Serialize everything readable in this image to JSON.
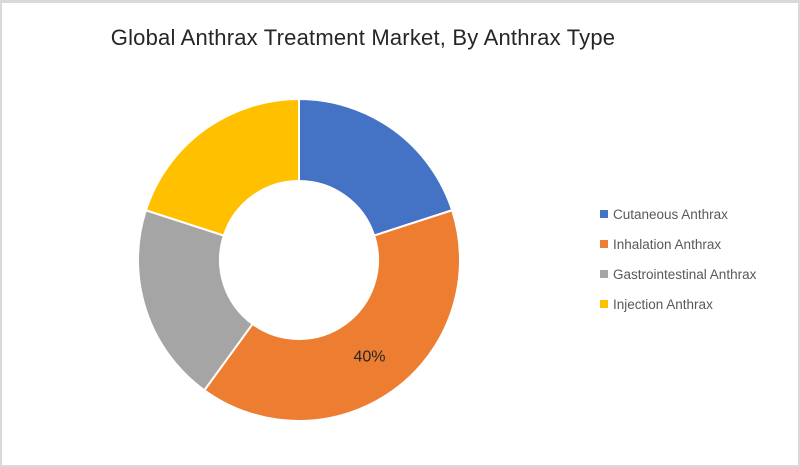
{
  "title": "Global Anthrax Treatment Market, By Anthrax Type",
  "canvas": {
    "background": "#ffffff",
    "border_color": "#d9d9d9"
  },
  "chart_data": {
    "type": "pie",
    "subtype": "donut",
    "title": "Global Anthrax Treatment Market, By Anthrax Type",
    "unit": "%",
    "start_angle_deg": 0,
    "direction": "clockwise",
    "donut_hole_ratio": 0.49,
    "legend_position": "right",
    "data_label_color": "#262626",
    "separator_color": "#ffffff",
    "segments": [
      {
        "name": "Cutaneous Anthrax",
        "value": 20,
        "color": "#4472C4",
        "label": ""
      },
      {
        "name": "Inhalation Anthrax",
        "value": 40,
        "color": "#ED7D31",
        "label": "40%"
      },
      {
        "name": "Gastrointestinal Anthrax",
        "value": 20,
        "color": "#A5A5A5",
        "label": ""
      },
      {
        "name": "Injection Anthrax",
        "value": 20,
        "color": "#FFC000",
        "label": ""
      }
    ]
  }
}
